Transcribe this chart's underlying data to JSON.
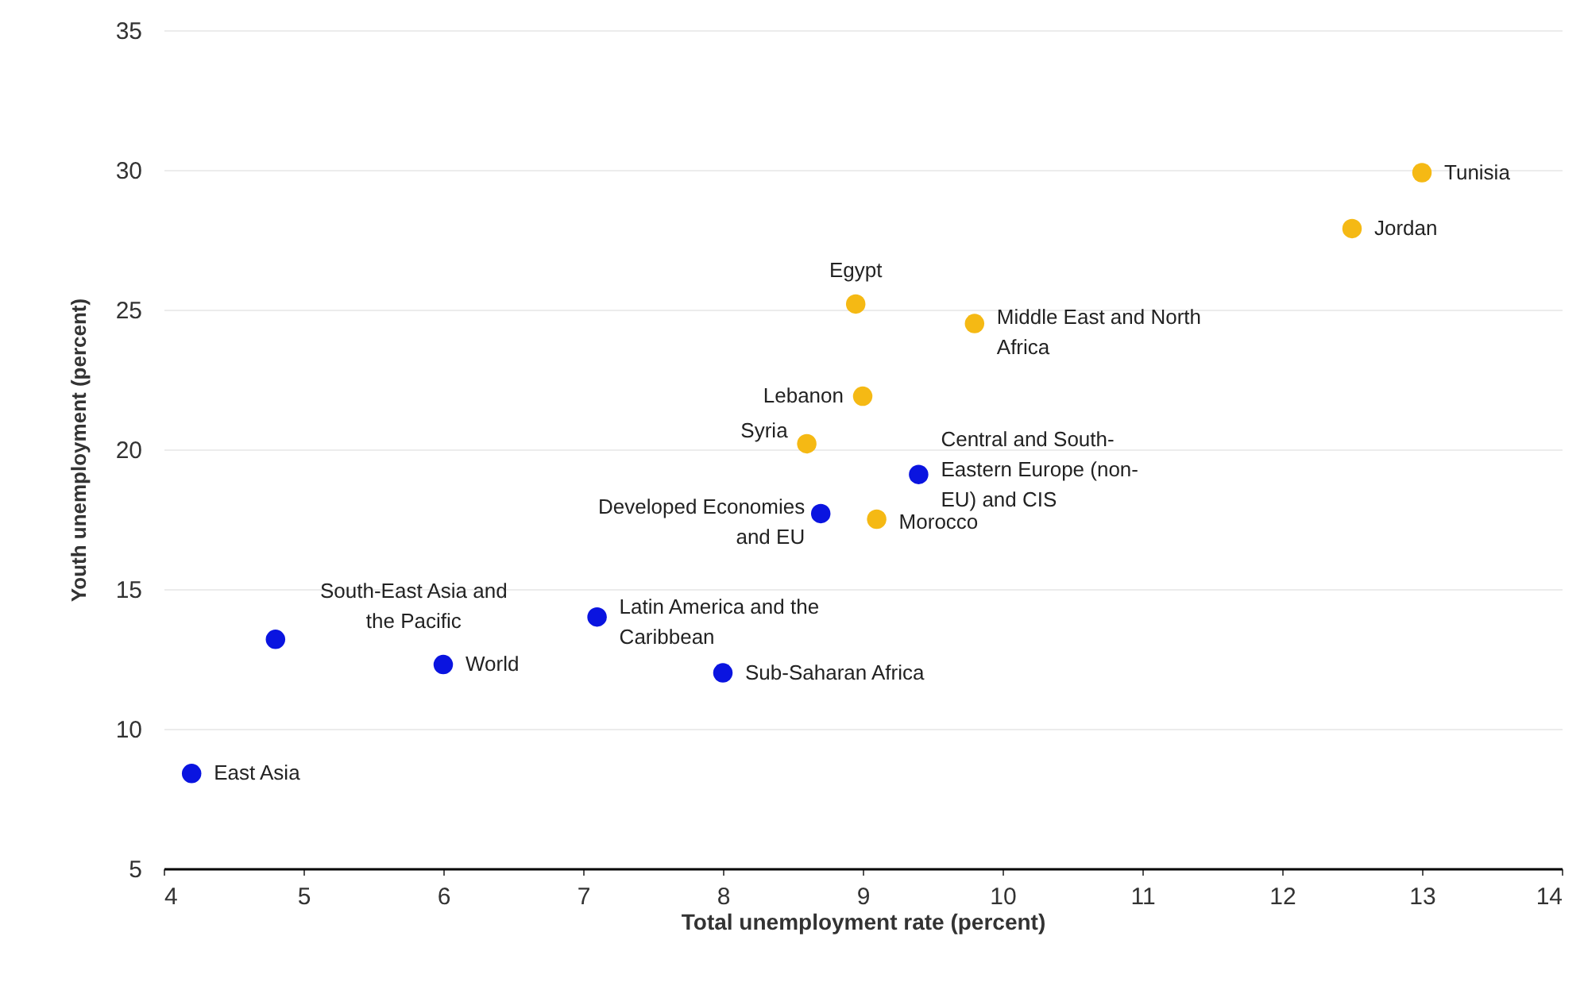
{
  "chart_data": {
    "type": "scatter",
    "xlabel": "Total unemployment rate (percent)",
    "ylabel": "Youth unemployment (percent)",
    "xlim": [
      4,
      14
    ],
    "xticks": [
      4,
      5,
      6,
      7,
      8,
      9,
      10,
      11,
      12,
      13,
      14
    ],
    "ylim": [
      5,
      35
    ],
    "yticks": [
      5,
      10,
      15,
      20,
      25,
      30,
      35
    ],
    "grid": "y",
    "marker": "circle",
    "series": [
      {
        "color": "#0a14e0",
        "x": [
          4.2,
          4.8,
          6.0,
          7.1,
          8.0,
          8.7,
          9.4
        ],
        "values": [
          8.4,
          13.2,
          12.3,
          14.0,
          12.0,
          17.7,
          19.1
        ]
      },
      {
        "color": "#f5b914",
        "x": [
          8.95,
          9.8,
          9.0,
          8.6,
          9.1,
          13.0,
          12.5
        ],
        "values": [
          25.2,
          24.5,
          21.9,
          20.2,
          17.5,
          29.9,
          27.9
        ]
      }
    ],
    "annotations": [
      {
        "text": "East Asia",
        "x": 4.2,
        "y": 8.4
      },
      {
        "text": "South-East Asia and\nthe Pacific",
        "x": 4.8,
        "y": 13.2
      },
      {
        "text": "World",
        "x": 6.0,
        "y": 12.3
      },
      {
        "text": "Latin America and the\nCaribbean",
        "x": 7.1,
        "y": 14.0
      },
      {
        "text": "Sub-Saharan Africa",
        "x": 8.0,
        "y": 12.0
      },
      {
        "text": "Developed Economies\nand EU",
        "x": 8.7,
        "y": 17.7
      },
      {
        "text": "Central and South-\nEastern Europe (non-\nEU) and CIS",
        "x": 9.4,
        "y": 19.1
      },
      {
        "text": "Egypt",
        "x": 8.95,
        "y": 25.2
      },
      {
        "text": "Middle East and North\nAfrica",
        "x": 9.8,
        "y": 24.5
      },
      {
        "text": "Lebanon",
        "x": 9.0,
        "y": 21.9
      },
      {
        "text": "Syria",
        "x": 8.6,
        "y": 20.2
      },
      {
        "text": "Morocco",
        "x": 9.1,
        "y": 17.5
      },
      {
        "text": "Tunisia",
        "x": 13.0,
        "y": 29.9
      },
      {
        "text": "Jordan",
        "x": 12.5,
        "y": 27.9
      }
    ]
  }
}
